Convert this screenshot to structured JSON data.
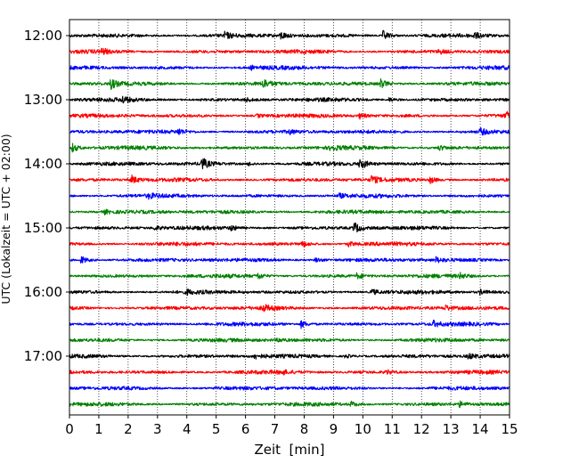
{
  "chart_data": {
    "type": "line",
    "xlabel": "Zeit  [min]",
    "ylabel": "UTC (Lokalzeit = UTC + 02:00)",
    "xlim": [
      0,
      15
    ],
    "x_ticks": [
      "0",
      "1",
      "2",
      "3",
      "4",
      "5",
      "6",
      "7",
      "8",
      "9",
      "10",
      "11",
      "12",
      "13",
      "14",
      "15"
    ],
    "y_ticks": [
      "12:00",
      "13:00",
      "14:00",
      "15:00",
      "16:00",
      "17:00"
    ],
    "grid": "vertical-dotted",
    "trace_colors": [
      "#000000",
      "#ff0000",
      "#0000ff",
      "#008000"
    ],
    "traces": [
      {
        "start": "12:00",
        "color": "#000000",
        "events": [
          [
            5.3,
            0.5
          ],
          [
            7.2,
            0.6
          ],
          [
            10.7,
            0.8
          ],
          [
            13.8,
            0.4
          ]
        ]
      },
      {
        "start": "12:15",
        "color": "#ff0000",
        "events": [
          [
            1.1,
            0.4
          ],
          [
            12.6,
            0.3
          ]
        ]
      },
      {
        "start": "12:30",
        "color": "#0000ff",
        "events": [
          [
            6.2,
            0.3
          ]
        ]
      },
      {
        "start": "12:45",
        "color": "#008000",
        "events": [
          [
            1.4,
            0.8
          ],
          [
            6.6,
            0.7
          ],
          [
            10.6,
            0.7
          ]
        ]
      },
      {
        "start": "13:00",
        "color": "#000000",
        "events": [
          [
            1.8,
            0.5
          ],
          [
            6.0,
            0.3
          ],
          [
            10.9,
            0.3
          ]
        ]
      },
      {
        "start": "13:15",
        "color": "#ff0000",
        "events": [
          [
            6.4,
            0.3
          ],
          [
            9.9,
            0.4
          ],
          [
            14.9,
            0.6
          ]
        ]
      },
      {
        "start": "13:30",
        "color": "#0000ff",
        "events": [
          [
            3.7,
            0.5
          ],
          [
            7.5,
            0.3
          ],
          [
            14.0,
            0.5
          ]
        ]
      },
      {
        "start": "13:45",
        "color": "#008000",
        "events": [
          [
            0.1,
            0.7
          ],
          [
            8.9,
            0.4
          ],
          [
            12.6,
            0.4
          ]
        ]
      },
      {
        "start": "14:00",
        "color": "#000000",
        "events": [
          [
            4.5,
            1.0
          ],
          [
            6.1,
            0.3
          ],
          [
            9.9,
            0.9
          ]
        ]
      },
      {
        "start": "14:15",
        "color": "#ff0000",
        "events": [
          [
            2.1,
            0.7
          ],
          [
            10.3,
            0.6
          ],
          [
            12.3,
            0.5
          ]
        ]
      },
      {
        "start": "14:30",
        "color": "#0000ff",
        "events": [
          [
            2.7,
            0.3
          ],
          [
            9.2,
            0.3
          ]
        ]
      },
      {
        "start": "14:45",
        "color": "#008000",
        "events": [
          [
            1.2,
            0.3
          ]
        ]
      },
      {
        "start": "15:00",
        "color": "#000000",
        "events": [
          [
            5.5,
            0.4
          ],
          [
            9.7,
            0.9
          ],
          [
            2.9,
            0.3
          ]
        ]
      },
      {
        "start": "15:15",
        "color": "#ff0000",
        "events": [
          [
            7.9,
            0.6
          ],
          [
            9.5,
            0.4
          ]
        ]
      },
      {
        "start": "15:30",
        "color": "#0000ff",
        "events": [
          [
            0.4,
            0.6
          ],
          [
            8.4,
            0.4
          ],
          [
            12.5,
            0.4
          ]
        ]
      },
      {
        "start": "15:45",
        "color": "#008000",
        "events": [
          [
            6.4,
            0.5
          ],
          [
            9.8,
            0.4
          ],
          [
            13.3,
            0.4
          ]
        ]
      },
      {
        "start": "16:00",
        "color": "#000000",
        "events": [
          [
            4.0,
            0.3
          ],
          [
            10.3,
            0.5
          ],
          [
            14.0,
            0.4
          ]
        ]
      },
      {
        "start": "16:15",
        "color": "#ff0000",
        "events": [
          [
            6.6,
            0.5
          ],
          [
            12.8,
            0.4
          ]
        ]
      },
      {
        "start": "16:30",
        "color": "#0000ff",
        "events": [
          [
            7.9,
            0.6
          ],
          [
            12.4,
            0.4
          ]
        ]
      },
      {
        "start": "16:45",
        "color": "#008000",
        "events": [
          [
            7.1,
            0.3
          ]
        ]
      },
      {
        "start": "17:00",
        "color": "#000000",
        "events": [
          [
            6.3,
            0.4
          ],
          [
            9.4,
            0.3
          ],
          [
            13.6,
            0.4
          ]
        ]
      },
      {
        "start": "17:15",
        "color": "#ff0000",
        "events": [
          [
            7.2,
            0.3
          ],
          [
            10.8,
            0.3
          ]
        ]
      },
      {
        "start": "17:30",
        "color": "#0000ff",
        "events": []
      },
      {
        "start": "17:45",
        "color": "#008000",
        "events": [
          [
            9.6,
            0.4
          ],
          [
            13.3,
            0.4
          ]
        ]
      }
    ]
  }
}
